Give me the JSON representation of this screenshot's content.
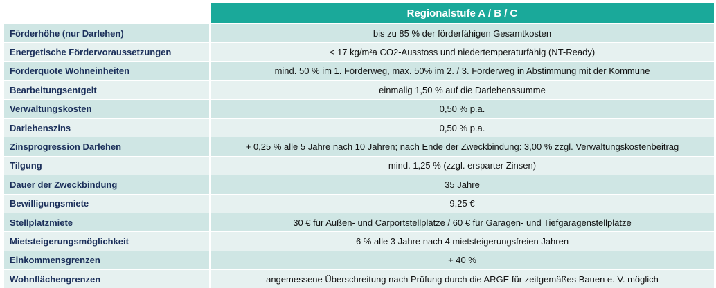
{
  "header": {
    "column_title": "Regionalstufe A / B / C"
  },
  "rows": [
    {
      "label": "Förderhöhe (nur Darlehen)",
      "value": "bis zu 85 % der förderfähigen Gesamtkosten"
    },
    {
      "label": "Energetische Fördervoraussetzungen",
      "value": "< 17 kg/m²a CO2-Ausstoss und niedertemperaturfähig (NT-Ready)"
    },
    {
      "label": "Förderquote Wohneinheiten",
      "value": "mind. 50 % im 1. Förderweg, max. 50% im 2. / 3. Förderweg in Abstimmung mit der Kommune"
    },
    {
      "label": "Bearbeitungsentgelt",
      "value": "einmalig 1,50 % auf die Darlehenssumme"
    },
    {
      "label": "Verwaltungskosten",
      "value": "0,50 % p.a."
    },
    {
      "label": "Darlehenszins",
      "value": "0,50 % p.a."
    },
    {
      "label": "Zinsprogression Darlehen",
      "value": "+ 0,25 % alle 5 Jahre nach 10 Jahren; nach Ende der Zweckbindung: 3,00 % zzgl. Verwaltungskostenbeitrag"
    },
    {
      "label": "Tilgung",
      "value": "mind. 1,25 % (zzgl. ersparter Zinsen)"
    },
    {
      "label": "Dauer der Zweckbindung",
      "value": "35 Jahre"
    },
    {
      "label": "Bewilligungsmiete",
      "value": "9,25 €"
    },
    {
      "label": "Stellplatzmiete",
      "value": "30 € für Außen- und Carportstellplätze  /  60 € für Garagen- und Tiefgaragenstellplätze"
    },
    {
      "label": "Mietsteigerungsmöglichkeit",
      "value": "6 % alle 3 Jahre nach 4 mietsteigerungsfreien Jahren"
    },
    {
      "label": "Einkommensgrenzen",
      "value": "+ 40 %"
    },
    {
      "label": "Wohnflächengrenzen",
      "value": "angemessene Überschreitung nach Prüfung durch die ARGE für zeitgemäßes Bauen e. V. möglich"
    }
  ],
  "colors": {
    "header_bg": "#1aa99a",
    "row_dark": "#cfe6e4",
    "row_light": "#e6f1f0",
    "label_text": "#1b2f5a"
  }
}
